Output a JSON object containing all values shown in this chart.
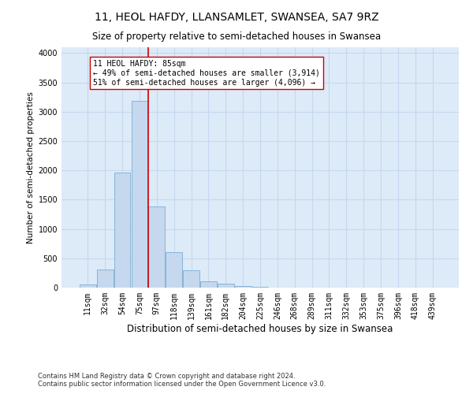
{
  "title": "11, HEOL HAFDY, LLANSAMLET, SWANSEA, SA7 9RZ",
  "subtitle": "Size of property relative to semi-detached houses in Swansea",
  "xlabel": "Distribution of semi-detached houses by size in Swansea",
  "ylabel": "Number of semi-detached properties",
  "footnote": "Contains HM Land Registry data © Crown copyright and database right 2024.\nContains public sector information licensed under the Open Government Licence v3.0.",
  "bar_color": "#c5d8ee",
  "bar_edge_color": "#7aadd4",
  "grid_color": "#c5d8ee",
  "background_color": "#ddeaf8",
  "property_line_color": "#cc0000",
  "annotation_text": "11 HEOL HAFDY: 85sqm\n← 49% of semi-detached houses are smaller (3,914)\n51% of semi-detached houses are larger (4,096) →",
  "annotation_box_color": "#ffffff",
  "annotation_box_edge": "#cc0000",
  "categories": [
    "11sqm",
    "32sqm",
    "54sqm",
    "75sqm",
    "97sqm",
    "118sqm",
    "139sqm",
    "161sqm",
    "182sqm",
    "204sqm",
    "225sqm",
    "246sqm",
    "268sqm",
    "289sqm",
    "311sqm",
    "332sqm",
    "353sqm",
    "375sqm",
    "396sqm",
    "418sqm",
    "439sqm"
  ],
  "values": [
    50,
    310,
    1960,
    3190,
    1390,
    600,
    295,
    105,
    68,
    28,
    12,
    5,
    4,
    3,
    2,
    1,
    1,
    1,
    1,
    0,
    0
  ],
  "ylim": [
    0,
    4100
  ],
  "red_line_x": 3.5,
  "title_fontsize": 10,
  "subtitle_fontsize": 8.5,
  "ylabel_fontsize": 7.5,
  "xlabel_fontsize": 8.5,
  "tick_fontsize": 7,
  "annotation_fontsize": 7,
  "footnote_fontsize": 6
}
